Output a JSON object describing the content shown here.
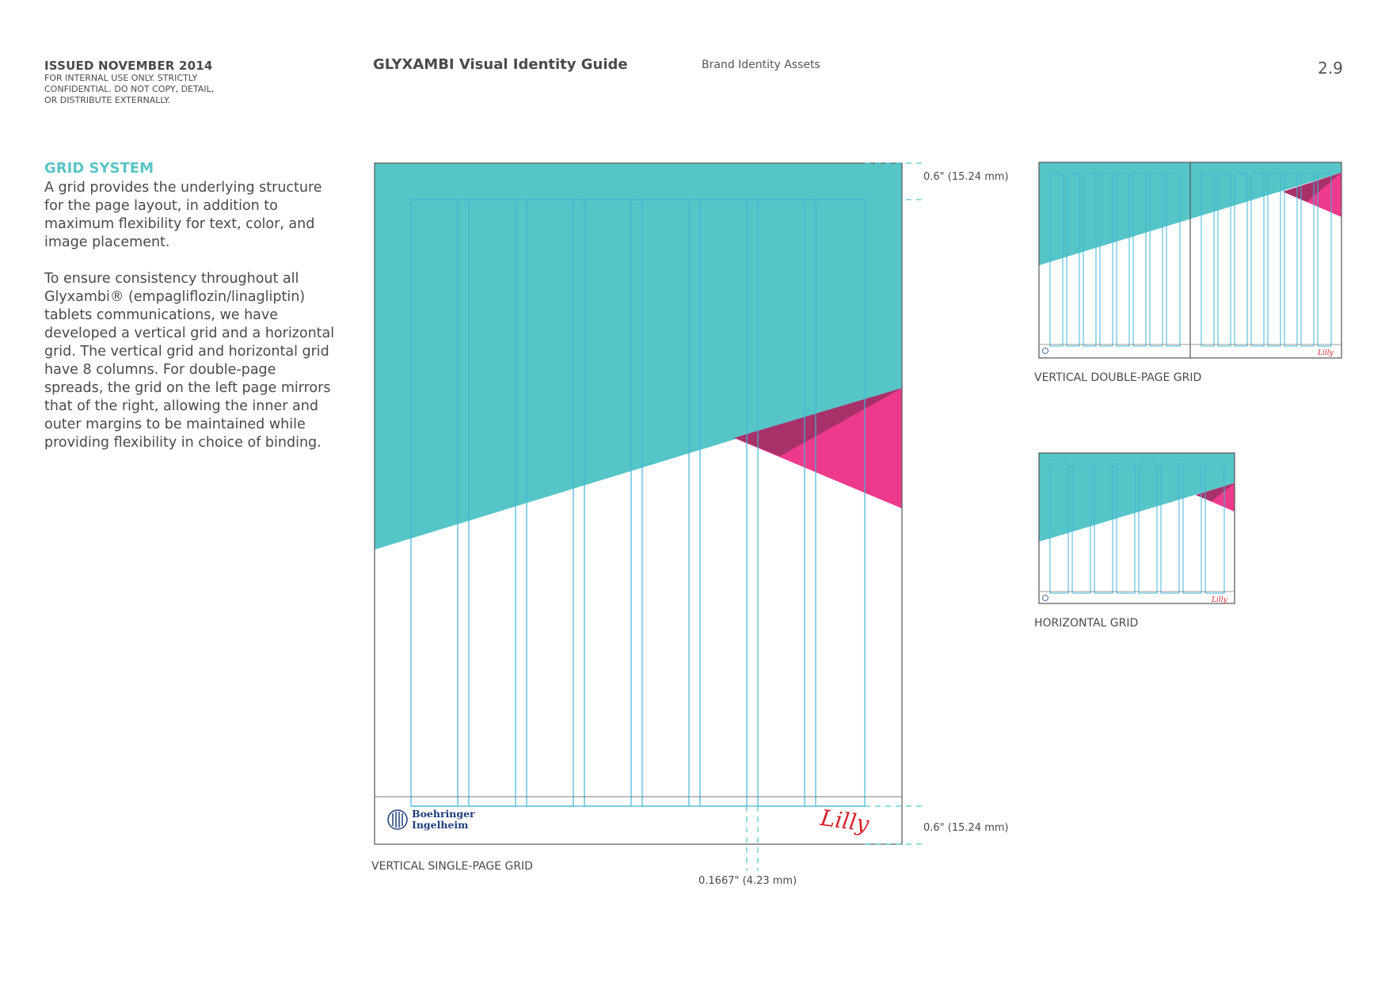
{
  "header": {
    "issued": "ISSUED NOVEMBER 2014",
    "confidential": "FOR INTERNAL USE ONLY. STRICTLY\nCONFIDENTIAL. DO NOT COPY, DETAIL,\nOR DISTRIBUTE EXTERNALLY.",
    "doc_title": "GLYXAMBI Visual Identity Guide",
    "section": "Brand Identity Assets",
    "page_number": "2.9"
  },
  "content": {
    "heading": "GRID SYSTEM",
    "paragraph_1": "A grid provides the underlying structure for the page layout, in addition to maximum flexibility for text, color, and image placement.",
    "paragraph_2": "To ensure consistency throughout all Glyxambi® (empagliflozin/linagliptin) tablets communications, we have developed a vertical grid and a horizontal grid. The vertical grid and horizontal grid have 8 columns. For double-page spreads, the grid on the left page mirrors that of the right, allowing the inner and outer margins to be maintained while providing flexibility in choice of binding."
  },
  "diagrams": {
    "single": {
      "caption": "VERTICAL SINGLE-PAGE GRID",
      "top_margin": "0.6\" (15.24 mm)",
      "bottom_margin": "0.6\" (15.24 mm)",
      "gutter": "0.1667\" (4.23 mm)",
      "logo_left_line1": "Boehringer",
      "logo_left_line2": "Ingelheim",
      "logo_right": "Lilly"
    },
    "double": {
      "caption": "VERTICAL DOUBLE-PAGE GRID"
    },
    "horizontal": {
      "caption": "HORIZONTAL GRID"
    }
  },
  "colors": {
    "teal": "#56c5c7",
    "magenta": "#ee3a8c",
    "plum": "#a8316a",
    "grid_line": "#3fb6d8",
    "lilly_red": "#d6242b",
    "bi_blue": "#1e3d7b"
  }
}
